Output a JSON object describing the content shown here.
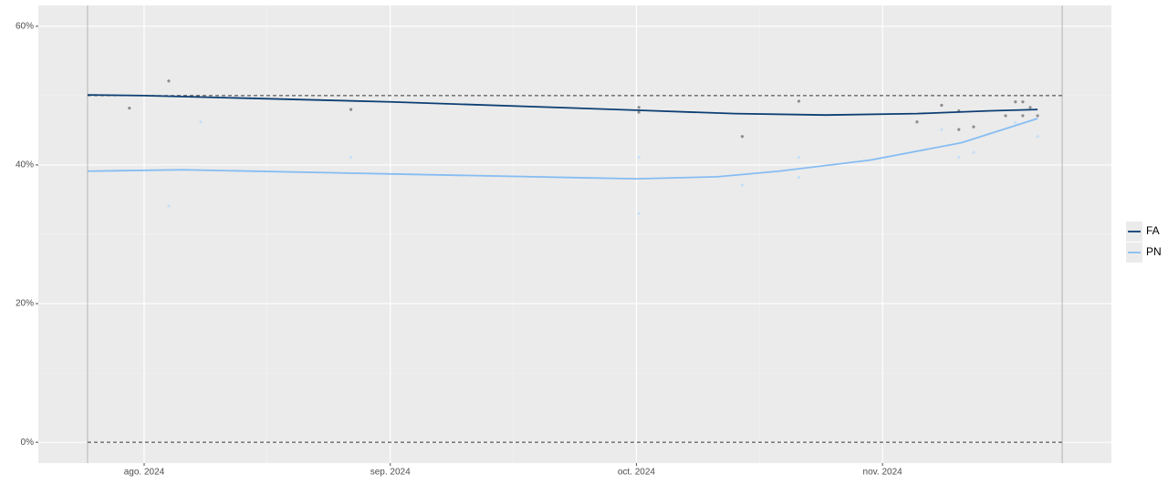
{
  "chart_data": {
    "type": "line",
    "xlim": [
      7.57,
      11.93
    ],
    "xticks": [
      {
        "value": 8,
        "label": "ago. 2024"
      },
      {
        "value": 9,
        "label": "sep. 2024"
      },
      {
        "value": 10,
        "label": "oct. 2024"
      },
      {
        "value": 11,
        "label": "nov. 2024"
      }
    ],
    "ylim": [
      -3,
      63
    ],
    "yticks": [
      {
        "value": 0,
        "label": "0%"
      },
      {
        "value": 20,
        "label": "20%"
      },
      {
        "value": 40,
        "label": "40%"
      },
      {
        "value": 60,
        "label": "60%"
      }
    ],
    "grid": true,
    "hlines": [
      0,
      50
    ],
    "vlines": [
      7.77,
      11.73
    ],
    "legend": "right",
    "series": [
      {
        "name": "FA",
        "color": "#0d3f73",
        "x": [
          7.77,
          8.0,
          9.0,
          10.0,
          10.4,
          10.77,
          11.14,
          11.43,
          11.63
        ],
        "values": [
          50.1,
          50.0,
          49.1,
          47.9,
          47.4,
          47.2,
          47.4,
          47.8,
          48.0
        ],
        "points": {
          "color": "#8c8c8c",
          "x": [
            7.94,
            8.1,
            8.84,
            10.01,
            10.01,
            10.43,
            10.66,
            11.14,
            11.24,
            11.31,
            11.31,
            11.37,
            11.5,
            11.54,
            11.57,
            11.57,
            11.6,
            11.63
          ],
          "values": [
            48.2,
            52.1,
            48.0,
            48.3,
            47.6,
            44.1,
            49.2,
            46.2,
            48.6,
            47.8,
            45.1,
            45.5,
            47.1,
            49.1,
            49.1,
            47.1,
            48.3,
            47.1
          ]
        }
      },
      {
        "name": "PN",
        "color": "#86bdf2",
        "x": [
          7.77,
          8.16,
          9.0,
          10.0,
          10.33,
          10.58,
          10.95,
          11.32,
          11.63
        ],
        "values": [
          39.1,
          39.3,
          38.7,
          38.0,
          38.3,
          39.1,
          40.7,
          43.2,
          46.7
        ],
        "points": {
          "color": "#c7e0f7",
          "x": [
            8.1,
            8.23,
            8.84,
            10.01,
            10.01,
            10.43,
            10.66,
            10.66,
            11.24,
            11.31,
            11.37,
            11.54,
            11.63
          ],
          "values": [
            34.1,
            46.2,
            41.1,
            41.1,
            33.0,
            37.1,
            38.2,
            41.1,
            45.1,
            41.1,
            41.8,
            46.1,
            44.1
          ]
        }
      }
    ]
  }
}
